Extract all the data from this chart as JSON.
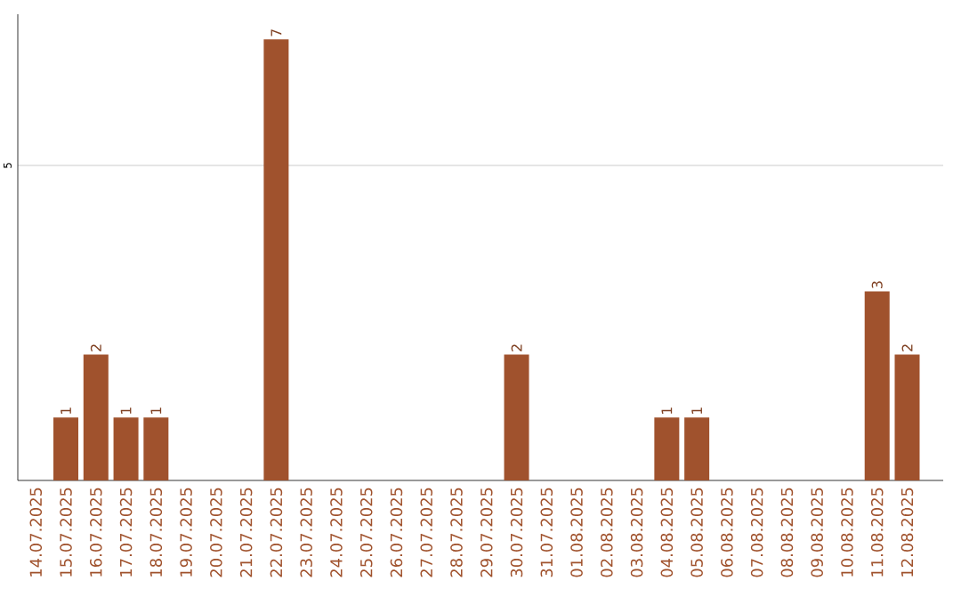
{
  "chart_data": {
    "type": "bar",
    "categories": [
      "14.07.2025",
      "15.07.2025",
      "16.07.2025",
      "17.07.2025",
      "18.07.2025",
      "19.07.2025",
      "20.07.2025",
      "21.07.2025",
      "22.07.2025",
      "23.07.2025",
      "24.07.2025",
      "25.07.2025",
      "26.07.2025",
      "27.07.2025",
      "28.07.2025",
      "29.07.2025",
      "30.07.2025",
      "31.07.2025",
      "01.08.2025",
      "02.08.2025",
      "03.08.2025",
      "04.08.2025",
      "05.08.2025",
      "06.08.2025",
      "07.08.2025",
      "08.08.2025",
      "09.08.2025",
      "10.08.2025",
      "11.08.2025",
      "12.08.2025"
    ],
    "values": [
      0,
      1,
      2,
      1,
      1,
      0,
      0,
      0,
      7,
      0,
      0,
      0,
      0,
      0,
      0,
      0,
      2,
      0,
      0,
      0,
      0,
      1,
      1,
      0,
      0,
      0,
      0,
      0,
      3,
      2
    ],
    "value_labels": [
      null,
      "1",
      "2",
      "1",
      "1",
      null,
      null,
      null,
      "7",
      null,
      null,
      null,
      null,
      null,
      null,
      null,
      "2",
      null,
      null,
      null,
      null,
      "1",
      "1",
      null,
      null,
      null,
      null,
      null,
      "3",
      "2"
    ],
    "color": "#a0522d",
    "ylim": [
      0,
      7.4
    ],
    "yticks": [
      5
    ],
    "grid": "y"
  }
}
